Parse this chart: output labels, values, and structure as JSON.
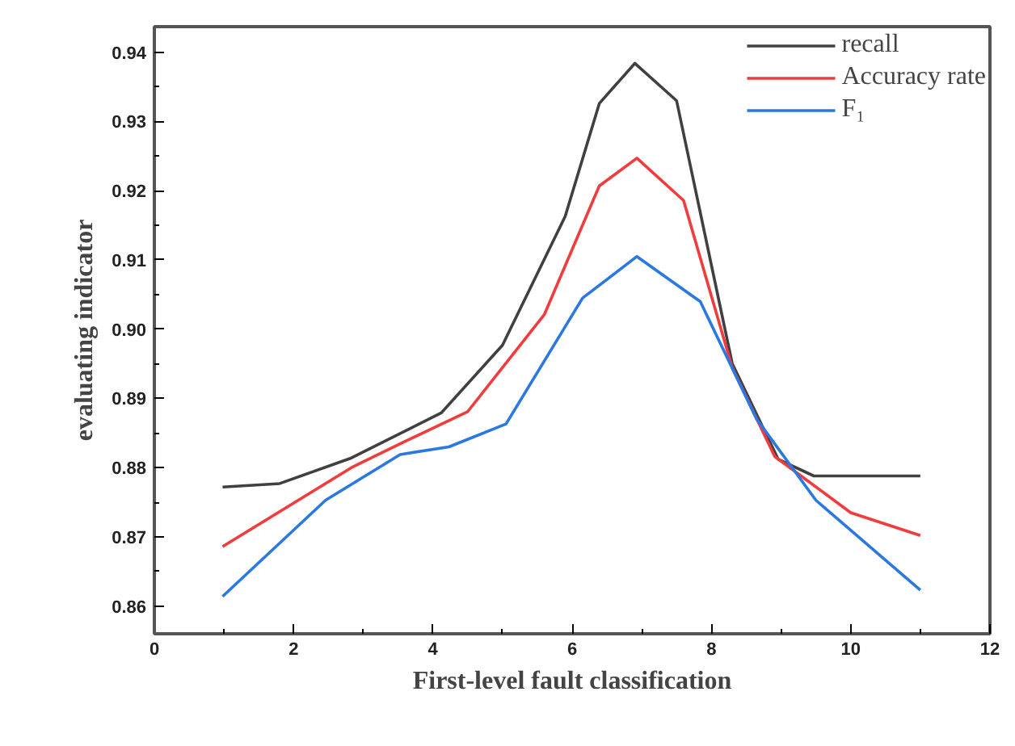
{
  "chart_data": {
    "type": "line",
    "xlabel": "First-level fault classification",
    "ylabel": "evaluating indicator",
    "xlim": [
      0,
      12
    ],
    "xticks": [
      0,
      2,
      4,
      6,
      8,
      10,
      12
    ],
    "ylim": [
      0.856,
      0.9437
    ],
    "yticks": [
      {
        "value": 0.86,
        "label": "0.86"
      },
      {
        "value": 0.87,
        "label": "0.87"
      },
      {
        "value": 0.88,
        "label": "0.88"
      },
      {
        "value": 0.89,
        "label": "0.89"
      },
      {
        "value": 0.9,
        "label": "0.90"
      },
      {
        "value": 0.91,
        "label": "0.91"
      },
      {
        "value": 0.92,
        "label": "0.92"
      },
      {
        "value": 0.93,
        "label": "0.93"
      },
      {
        "value": 0.94,
        "label": "0.94"
      }
    ],
    "grid": false,
    "legend": "top right",
    "marker": "none",
    "line_style": "solid",
    "series": [
      {
        "name": "recall",
        "color": "#404040",
        "x": [
          0.98,
          1.8,
          2.83,
          4.12,
          5.0,
          5.9,
          6.39,
          6.9,
          7.5,
          8.3,
          8.96,
          9.47,
          11.0
        ],
        "values": [
          0.8772,
          0.8777,
          0.8814,
          0.8879,
          0.8977,
          0.9163,
          0.9326,
          0.9384,
          0.933,
          0.895,
          0.8812,
          0.8788,
          0.8788
        ]
      },
      {
        "name": "Accuracy rate",
        "color": "#f03c3c",
        "x": [
          0.98,
          2.83,
          3.5,
          4.5,
          5.6,
          6.39,
          6.93,
          7.6,
          8.3,
          8.91,
          10.0,
          11.0
        ],
        "values": [
          0.8686,
          0.88,
          0.8833,
          0.8881,
          0.9021,
          0.9207,
          0.9247,
          0.9186,
          0.8944,
          0.8816,
          0.8735,
          0.8702
        ]
      },
      {
        "name": "F₁",
        "color": "#2a78e0",
        "x": [
          0.98,
          2.46,
          3.53,
          4.23,
          5.05,
          6.15,
          6.93,
          7.84,
          8.65,
          9.5,
          11.0
        ],
        "values": [
          0.8614,
          0.8753,
          0.8819,
          0.883,
          0.8863,
          0.9045,
          0.9105,
          0.904,
          0.887,
          0.8753,
          0.8623
        ]
      }
    ]
  }
}
